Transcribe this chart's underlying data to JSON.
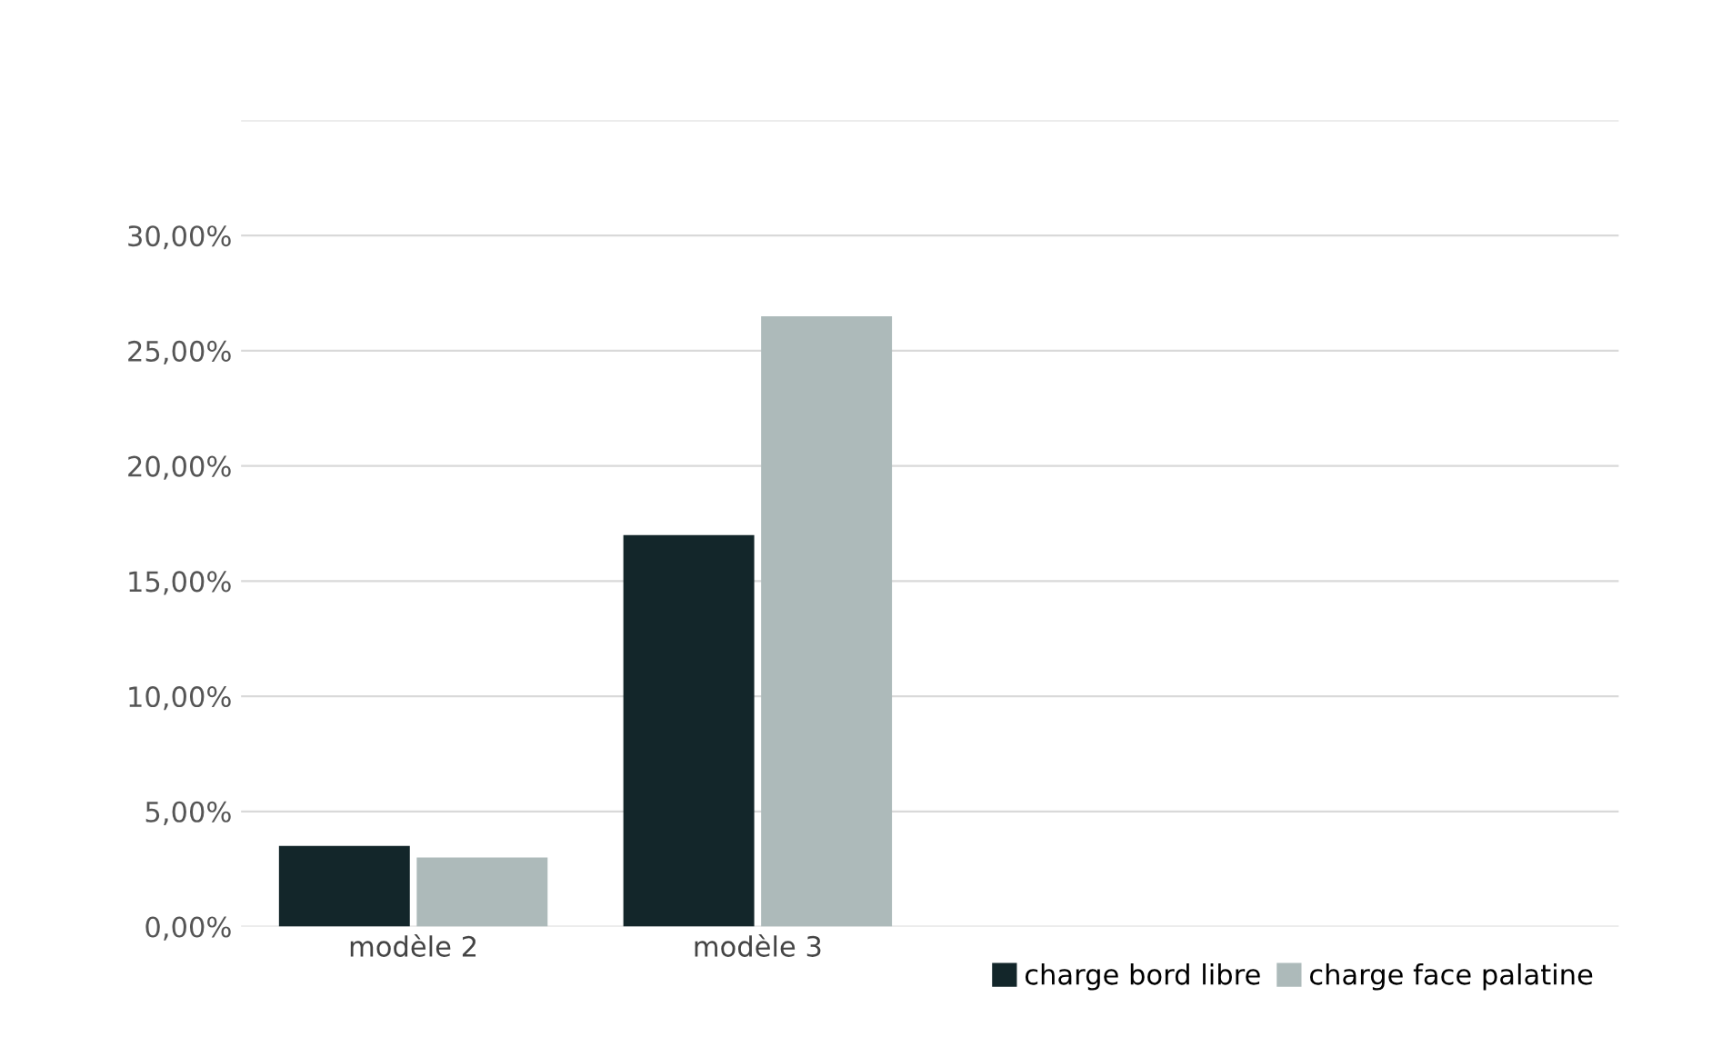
{
  "chart_data": {
    "type": "bar",
    "categories": [
      "modèle 2",
      "modèle 3",
      null,
      null
    ],
    "series": [
      {
        "name": "charge bord libre",
        "color": "#13262a",
        "values": [
          3.5,
          17,
          null,
          null
        ]
      },
      {
        "name": "charge face palatine",
        "color": "#adbaba",
        "values": [
          3,
          26.5,
          null,
          null
        ]
      }
    ],
    "ylim": [
      0,
      35
    ],
    "yticks": [
      {
        "value": 0,
        "label": "0,00%"
      },
      {
        "value": 5,
        "label": "5,00%"
      },
      {
        "value": 10,
        "label": "10,00%"
      },
      {
        "value": 15,
        "label": "15,00%"
      },
      {
        "value": 20,
        "label": "20,00%"
      },
      {
        "value": 25,
        "label": "25,00%"
      },
      {
        "value": 30,
        "label": "30,00%"
      },
      {
        "value": 35,
        "label": null
      }
    ],
    "grid": "y",
    "legend": "bottom right"
  }
}
